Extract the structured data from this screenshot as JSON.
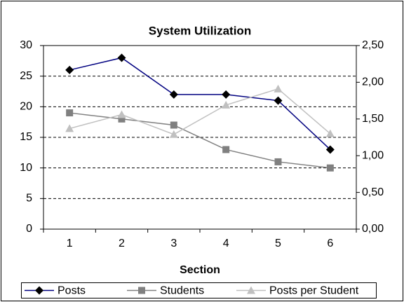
{
  "chart_data": {
    "type": "line",
    "title": "System Utilization",
    "x_label": "Section",
    "categories": [
      "1",
      "2",
      "3",
      "4",
      "5",
      "6"
    ],
    "series": [
      {
        "name": "Posts",
        "color": "#000080",
        "marker_color": "#000000",
        "marker": "diamond",
        "values": [
          26,
          28,
          22,
          22,
          21,
          13
        ]
      },
      {
        "name": "Students",
        "color": "#808080",
        "marker_color": "#808080",
        "marker": "square",
        "values": [
          19,
          18,
          17,
          13,
          11,
          10
        ]
      },
      {
        "name": "Posts per Student",
        "color": "#c0c0c0",
        "marker_color": "#c0c0c0",
        "marker": "triangle",
        "axis": "y2",
        "values": [
          1.37,
          1.56,
          1.29,
          1.69,
          1.91,
          1.3
        ]
      }
    ],
    "ylim": [
      0,
      30
    ],
    "yticks": [
      0,
      5,
      10,
      15,
      20,
      25,
      30
    ],
    "y2lim": [
      0,
      2.5
    ],
    "y2ticks": [
      {
        "value": 0,
        "label": "0,00"
      },
      {
        "value": 0.5,
        "label": "0,50"
      },
      {
        "value": 1,
        "label": "1,00"
      },
      {
        "value": 1.5,
        "label": "1,50"
      },
      {
        "value": 2,
        "label": "2,00"
      },
      {
        "value": 2.5,
        "label": "2,50"
      }
    ],
    "grid": true,
    "legend": "bottom"
  }
}
